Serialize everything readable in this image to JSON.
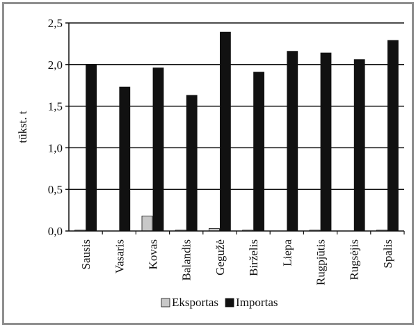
{
  "chart_data": {
    "type": "bar",
    "title": "",
    "xlabel": "",
    "ylabel": "tūkst. t",
    "ylim": [
      0,
      2.5
    ],
    "yticks": [
      "0,0",
      "0,5",
      "1,0",
      "1,5",
      "2,0",
      "2,5"
    ],
    "grid": true,
    "legend_position": "bottom",
    "categories": [
      "Sausis",
      "Vasaris",
      "Kovas",
      "Balandis",
      "Gegužė",
      "Birželis",
      "Liepa",
      "Rugpjūtis",
      "Rugsėjis",
      "Spalis"
    ],
    "series": [
      {
        "name": "Eksportas",
        "color": "#c8c8c8",
        "values": [
          0.01,
          0.0,
          0.18,
          0.01,
          0.03,
          0.01,
          0.0,
          0.01,
          0.0,
          0.01
        ]
      },
      {
        "name": "Importas",
        "color": "#111111",
        "values": [
          2.0,
          1.73,
          1.96,
          1.63,
          2.39,
          1.91,
          2.16,
          2.14,
          2.06,
          2.29
        ]
      }
    ]
  }
}
